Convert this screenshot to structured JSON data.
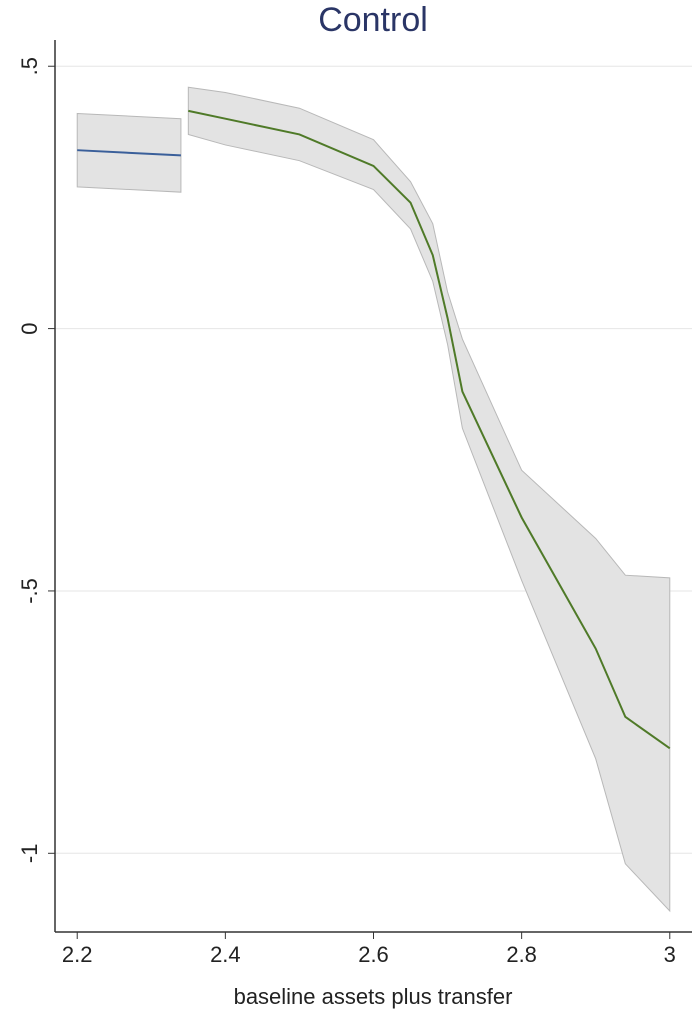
{
  "chart_data": {
    "type": "line",
    "title": "Control",
    "xlabel": "baseline assets plus transfer",
    "xlim": [
      2.17,
      3.03
    ],
    "ylim": [
      -1.15,
      0.55
    ],
    "xticks": [
      2.2,
      2.4,
      2.6,
      2.8,
      3
    ],
    "yticks": [
      {
        "value": 0.5,
        "label": ".5"
      },
      0,
      {
        "value": -0.5,
        "label": "-.5"
      },
      -1
    ],
    "grid": true,
    "band_color": "#e3e3e3",
    "series": [
      {
        "color": "#3a5f9a",
        "x": [
          2.2,
          2.34
        ],
        "values": [
          0.34,
          0.33
        ],
        "upper": [
          0.41,
          0.4
        ],
        "lower": [
          0.27,
          0.26
        ]
      },
      {
        "color": "#4f7a28",
        "x": [
          2.35,
          2.4,
          2.5,
          2.6,
          2.65,
          2.68,
          2.7,
          2.72,
          2.8,
          2.9,
          2.94,
          3.0
        ],
        "values": [
          0.415,
          0.4,
          0.37,
          0.31,
          0.24,
          0.14,
          0.02,
          -0.12,
          -0.36,
          -0.61,
          -0.74,
          -0.8
        ],
        "upper": [
          0.46,
          0.45,
          0.42,
          0.36,
          0.28,
          0.2,
          0.07,
          -0.02,
          -0.27,
          -0.4,
          -0.47,
          -0.475
        ],
        "lower": [
          0.37,
          0.35,
          0.32,
          0.265,
          0.19,
          0.09,
          -0.03,
          -0.19,
          -0.48,
          -0.82,
          -1.02,
          -1.11
        ]
      }
    ]
  }
}
